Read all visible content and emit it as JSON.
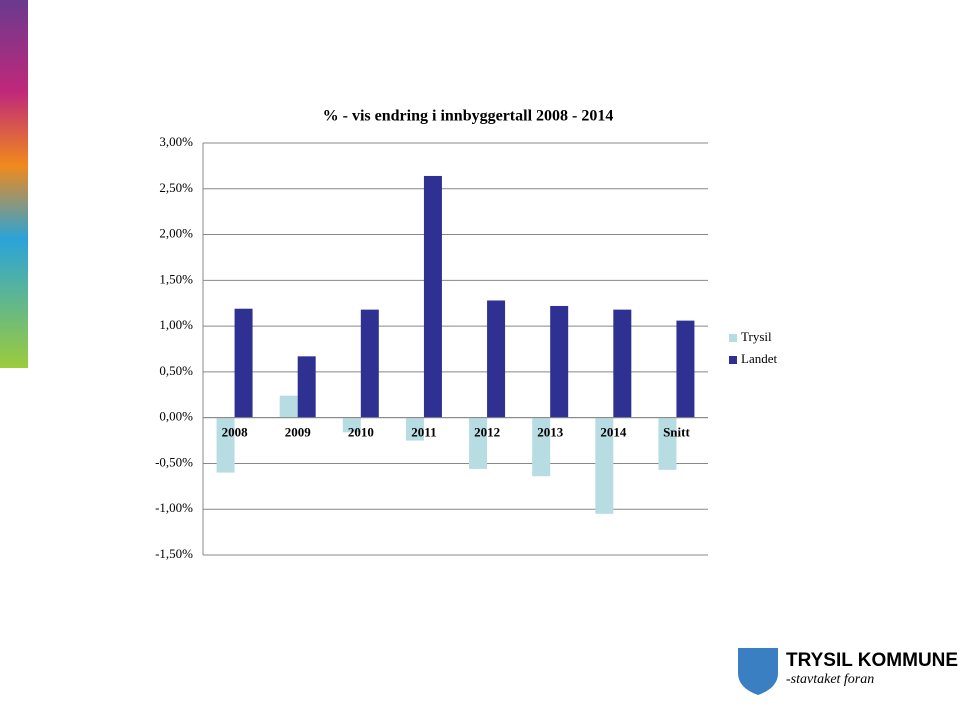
{
  "chart_data": {
    "type": "bar",
    "title": "% - vis endring i innbyggertall 2008 - 2014",
    "categories": [
      "2008",
      "2009",
      "2010",
      "2011",
      "2012",
      "2013",
      "2014",
      "Snitt"
    ],
    "series": [
      {
        "name": "Trysil",
        "color": "#b7dde3",
        "values": [
          -0.6,
          0.24,
          -0.16,
          -0.25,
          -0.56,
          -0.64,
          -1.05,
          -0.57
        ]
      },
      {
        "name": "Landet",
        "color": "#2e3192",
        "values": [
          1.19,
          0.67,
          1.18,
          2.64,
          1.28,
          1.22,
          1.18,
          1.06
        ]
      }
    ],
    "ylim": [
      -1.5,
      3.0
    ],
    "yticks": [
      {
        "value": -1.5,
        "label": "-1,50%"
      },
      {
        "value": -1.0,
        "label": "-1,00%"
      },
      {
        "value": -0.5,
        "label": "-0,50%"
      },
      {
        "value": 0,
        "label": "0,00%"
      },
      {
        "value": 0.5,
        "label": "0,50%"
      },
      {
        "value": 1.0,
        "label": "1,00%"
      },
      {
        "value": 1.5,
        "label": "1,50%"
      },
      {
        "value": 2.0,
        "label": "2,00%"
      },
      {
        "value": 2.5,
        "label": "2,50%"
      },
      {
        "value": 3.0,
        "label": "3,00%"
      }
    ],
    "grid": true,
    "legend": "right"
  },
  "logo": {
    "name": "TRYSIL KOMMUNE",
    "slogan": "-stavtaket foran"
  }
}
